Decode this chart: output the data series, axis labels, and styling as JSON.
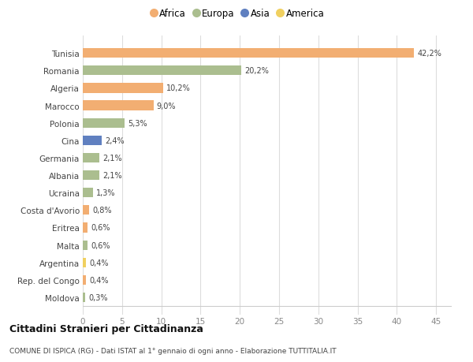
{
  "countries": [
    "Tunisia",
    "Romania",
    "Algeria",
    "Marocco",
    "Polonia",
    "Cina",
    "Germania",
    "Albania",
    "Ucraina",
    "Costa d'Avorio",
    "Eritrea",
    "Malta",
    "Argentina",
    "Rep. del Congo",
    "Moldova"
  ],
  "values": [
    42.2,
    20.2,
    10.2,
    9.0,
    5.3,
    2.4,
    2.1,
    2.1,
    1.3,
    0.8,
    0.6,
    0.6,
    0.4,
    0.4,
    0.3
  ],
  "continents": [
    "Africa",
    "Europa",
    "Africa",
    "Africa",
    "Europa",
    "Asia",
    "Europa",
    "Europa",
    "Europa",
    "Africa",
    "Africa",
    "Europa",
    "America",
    "Africa",
    "Europa"
  ],
  "labels": [
    "42,2%",
    "20,2%",
    "10,2%",
    "9,0%",
    "5,3%",
    "2,4%",
    "2,1%",
    "2,1%",
    "1,3%",
    "0,8%",
    "0,6%",
    "0,6%",
    "0,4%",
    "0,4%",
    "0,3%"
  ],
  "continent_colors": {
    "Africa": "#F2AE72",
    "Europa": "#ABBE8F",
    "Asia": "#6080C0",
    "America": "#F0D060"
  },
  "legend_order": [
    "Africa",
    "Europa",
    "Asia",
    "America"
  ],
  "title": "Cittadini Stranieri per Cittadinanza",
  "subtitle": "COMUNE DI ISPICA (RG) - Dati ISTAT al 1° gennaio di ogni anno - Elaborazione TUTTITALIA.IT",
  "xlim": [
    0,
    47
  ],
  "xticks": [
    0,
    5,
    10,
    15,
    20,
    25,
    30,
    35,
    40,
    45
  ],
  "bg_color": "#FFFFFF",
  "grid_color": "#DDDDDD",
  "bar_height": 0.55
}
